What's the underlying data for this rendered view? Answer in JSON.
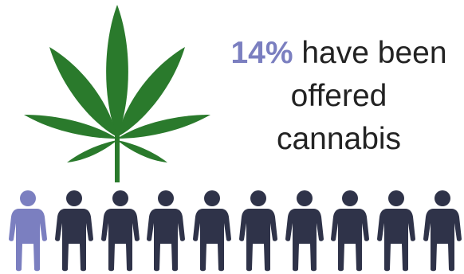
{
  "headline": {
    "percent": "14%",
    "line1_rest": " have been",
    "line2": "offered",
    "line3": "cannabis"
  },
  "figures": {
    "total": 10,
    "highlighted_count": 1
  },
  "icons": {
    "leaf": "cannabis-leaf-icon",
    "person": "person-icon"
  },
  "colors": {
    "highlight": "#7b7fc0",
    "figure": "#2f3349",
    "leaf": "#2a7a2c",
    "text": "#222222"
  }
}
